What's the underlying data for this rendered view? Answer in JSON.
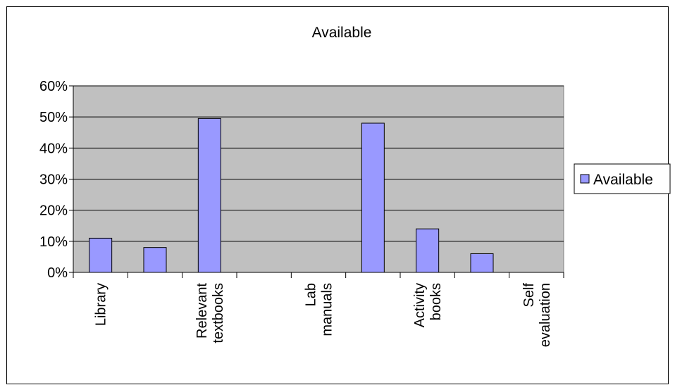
{
  "chart_data": {
    "type": "bar",
    "title": "Available",
    "xlabel": "",
    "ylabel": "",
    "categories": [
      [
        "Library"
      ],
      [
        ""
      ],
      [
        "Relevant",
        "textbooks"
      ],
      [
        ""
      ],
      [
        "Lab",
        "manuals"
      ],
      [
        ""
      ],
      [
        "Activity",
        "books"
      ],
      [
        ""
      ],
      [
        "Self",
        "evaluation"
      ]
    ],
    "series": [
      {
        "name": "Available",
        "values": [
          11,
          8,
          49.5,
          0,
          0,
          48,
          14,
          6,
          0
        ],
        "color": "#9999ff"
      }
    ],
    "ylim": [
      0,
      60
    ],
    "yticks": [
      "0%",
      "10%",
      "20%",
      "30%",
      "40%",
      "50%",
      "60%"
    ],
    "grid": true,
    "plot_background": "#c0c0c0",
    "legend": "right"
  }
}
